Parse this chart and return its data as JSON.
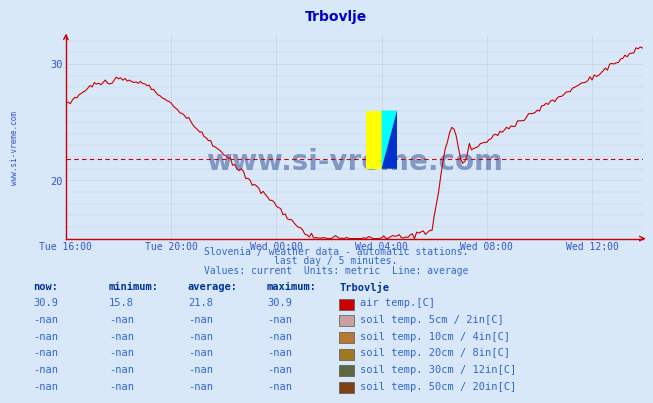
{
  "title": "Trbovlje",
  "title_color": "#0000cc",
  "bg_color": "#d8e8f8",
  "plot_bg_color": "#d8e8f8",
  "line_color": "#cc0000",
  "average_line_color": "#cc0000",
  "average_value": 21.8,
  "y_min": 15.0,
  "y_max": 32.5,
  "grid_color": "#c8d4e0",
  "axis_color": "#cc0000",
  "x_labels": [
    "Tue 16:00",
    "Tue 20:00",
    "Wed 00:00",
    "Wed 04:00",
    "Wed 08:00",
    "Wed 12:00"
  ],
  "x_label_color": "#3355cc",
  "watermark_text": "www.si-vreme.com",
  "watermark_color": "#1a3a8a",
  "sidebar_text": "www.si-vreme.com",
  "footer_text1": "Slovenia / weather data - automatic stations.",
  "footer_text2": "last day / 5 minutes.",
  "footer_text3": "Values: current  Units: metric  Line: average",
  "footer_color": "#3366cc",
  "table_header_color": "#003399",
  "table_data_color": "#3366cc",
  "legend_items": [
    {
      "label": "air temp.[C]",
      "color": "#cc0000"
    },
    {
      "label": "soil temp. 5cm / 2in[C]",
      "color": "#c8a0a0"
    },
    {
      "label": "soil temp. 10cm / 4in[C]",
      "color": "#b87830"
    },
    {
      "label": "soil temp. 20cm / 8in[C]",
      "color": "#a07820"
    },
    {
      "label": "soil temp. 30cm / 12in[C]",
      "color": "#606840"
    },
    {
      "label": "soil temp. 50cm / 20in[C]",
      "color": "#804010"
    }
  ],
  "table_rows": [
    {
      "now": "30.9",
      "minimum": "15.8",
      "average": "21.8",
      "maximum": "30.9"
    },
    {
      "now": "-nan",
      "minimum": "-nan",
      "average": "-nan",
      "maximum": "-nan"
    },
    {
      "now": "-nan",
      "minimum": "-nan",
      "average": "-nan",
      "maximum": "-nan"
    },
    {
      "now": "-nan",
      "minimum": "-nan",
      "average": "-nan",
      "maximum": "-nan"
    },
    {
      "now": "-nan",
      "minimum": "-nan",
      "average": "-nan",
      "maximum": "-nan"
    },
    {
      "now": "-nan",
      "minimum": "-nan",
      "average": "-nan",
      "maximum": "-nan"
    }
  ],
  "col_headers": [
    "now:",
    "minimum:",
    "average:",
    "maximum:",
    "Trbovlje"
  ],
  "logo_colors": {
    "yellow": "#ffff00",
    "cyan": "#00ffff",
    "blue": "#0033cc"
  }
}
